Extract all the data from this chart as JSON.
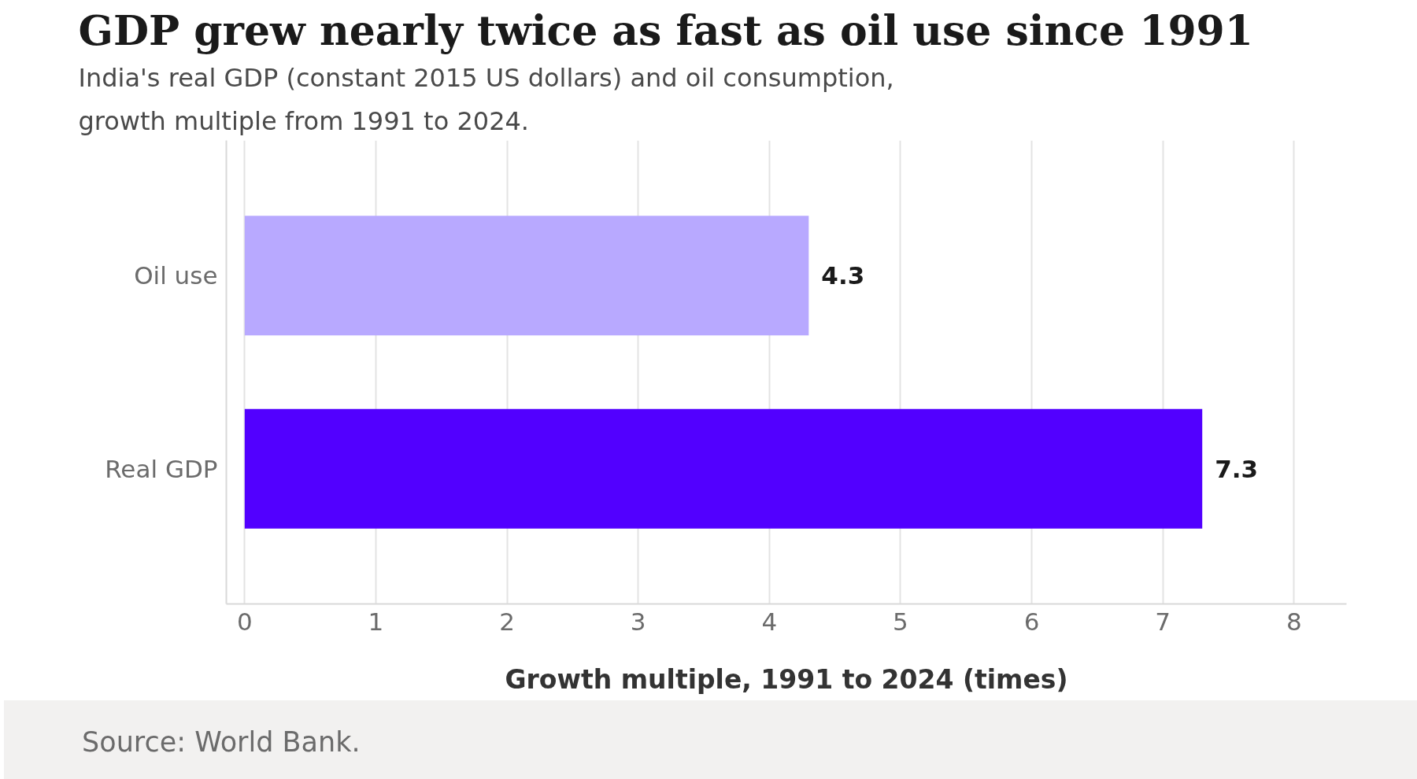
{
  "chart_data": {
    "type": "bar",
    "orientation": "horizontal",
    "title": "GDP grew nearly twice as fast as oil use since 1991",
    "subtitle": "India's real GDP (constant 2015 US dollars) and oil consumption,\ngrowth multiple from 1991 to 2024.",
    "xlabel": "Growth multiple, 1991 to 2024 (times)",
    "categories": [
      "Oil use",
      "Real GDP"
    ],
    "values": [
      4.3,
      7.3
    ],
    "colors": [
      "#b8a9ff",
      "#5200ff"
    ],
    "xlim": [
      -0.14,
      8.4
    ],
    "xticks": [
      0,
      1,
      2,
      3,
      4,
      5,
      6,
      7,
      8
    ],
    "grid": "x",
    "data_labels": true,
    "annotations": [
      "Source: World Bank."
    ]
  }
}
